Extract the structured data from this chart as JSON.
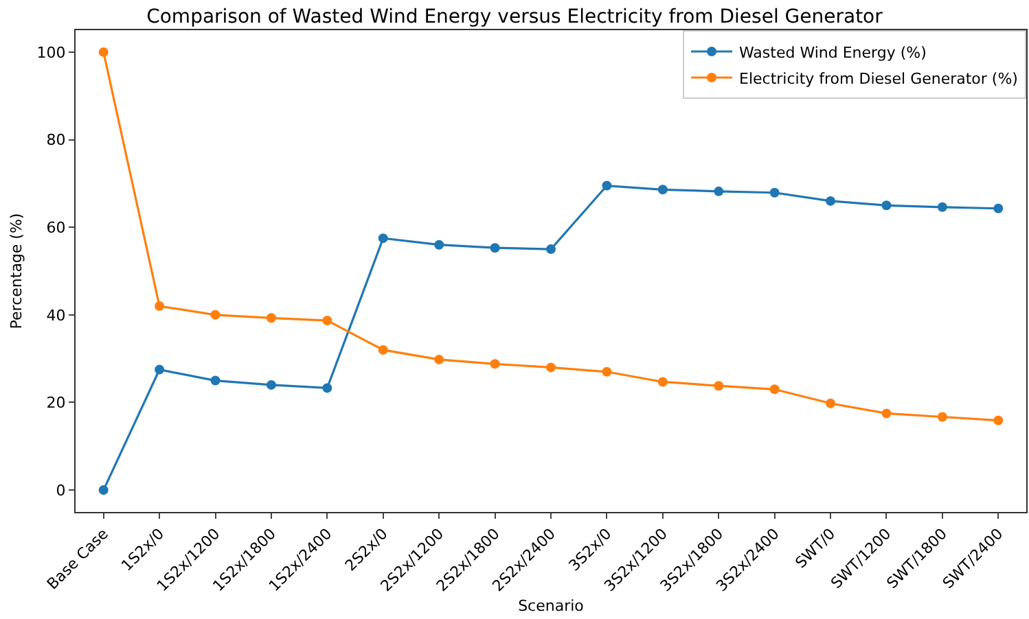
{
  "chart_data": {
    "type": "line",
    "title": "Comparison of Wasted Wind Energy versus Electricity from Diesel Generator",
    "xlabel": "Scenario",
    "ylabel": "Percentage (%)",
    "categories": [
      "Base Case",
      "1S2x/0",
      "1S2x/1200",
      "1S2x/1800",
      "1S2x/2400",
      "2S2x/0",
      "2S2x/1200",
      "2S2x/1800",
      "2S2x/2400",
      "3S2x/0",
      "3S2x/1200",
      "3S2x/1800",
      "3S2x/2400",
      "SWT/0",
      "SWT/1200",
      "SWT/1800",
      "SWT/2400"
    ],
    "series": [
      {
        "name": "Wasted Wind Energy (%)",
        "color": "#1f77b4",
        "values": [
          0,
          27.5,
          25,
          24,
          23.3,
          57.5,
          56,
          55.3,
          55,
          69.5,
          68.6,
          68.2,
          67.9,
          66,
          65,
          64.6,
          64.3
        ]
      },
      {
        "name": "Electricity from Diesel Generator (%)",
        "color": "#ff7f0e",
        "values": [
          100,
          42,
          40,
          39.3,
          38.7,
          32,
          29.8,
          28.8,
          28,
          27,
          24.7,
          23.8,
          23,
          19.8,
          17.5,
          16.7,
          15.9
        ]
      }
    ],
    "ylim": [
      -5,
      105
    ],
    "yticks": [
      0,
      20,
      40,
      60,
      80,
      100
    ],
    "grid": false,
    "legend": "top right",
    "marker": "circle",
    "line_style": "solid"
  }
}
